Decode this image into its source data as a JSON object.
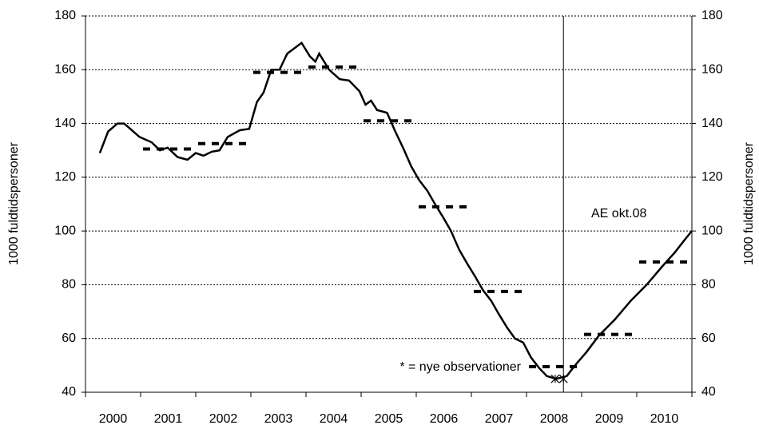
{
  "chart_data": {
    "type": "line",
    "y_label": "1000 fuldtidspersoner",
    "y2_label": "1000 fuldtidspersoner",
    "categories": [
      "2000",
      "2001",
      "2002",
      "2003",
      "2004",
      "2005",
      "2006",
      "2007",
      "2008",
      "2009",
      "2010"
    ],
    "xlim": [
      2000,
      2011
    ],
    "ylim": [
      40,
      180
    ],
    "yticks": [
      40,
      60,
      80,
      100,
      120,
      140,
      160,
      180
    ],
    "y2lim": [
      40,
      180
    ],
    "y2ticks": [
      40,
      60,
      80,
      100,
      120,
      140,
      160,
      180
    ],
    "grid": true,
    "series": [
      {
        "color": "#000000",
        "style": "solid",
        "x": [
          2000.26,
          2000.41,
          2000.58,
          2000.7,
          2000.84,
          2000.98,
          2001.2,
          2001.35,
          2001.49,
          2001.67,
          2001.85,
          2002.0,
          2002.14,
          2002.29,
          2002.43,
          2002.58,
          2002.8,
          2002.97,
          2003.11,
          2003.23,
          2003.37,
          2003.52,
          2003.66,
          2003.92,
          2004.07,
          2004.17,
          2004.24,
          2004.42,
          2004.61,
          2004.78,
          2004.97,
          2005.08,
          2005.18,
          2005.29,
          2005.47,
          2005.62,
          2005.76,
          2005.91,
          2006.05,
          2006.2,
          2006.34,
          2006.49,
          2006.63,
          2006.78,
          2006.92,
          2007.07,
          2007.21,
          2007.36,
          2007.5,
          2007.65,
          2007.79,
          2007.94,
          2008.08,
          2008.23,
          2008.37,
          2008.54,
          2008.73,
          2008.88,
          2009.09,
          2009.31,
          2009.6,
          2009.89,
          2010.18,
          2010.47,
          2010.69,
          2010.88,
          2011.0
        ],
        "values": [
          129,
          137,
          140,
          140,
          137.5,
          135,
          133,
          130,
          131,
          127.5,
          126.5,
          129,
          128,
          129.5,
          130,
          135,
          137.5,
          138,
          148,
          151.5,
          160,
          160,
          166,
          170,
          165,
          163,
          166,
          160,
          156.5,
          156,
          152,
          147,
          148.5,
          145,
          144,
          137,
          131,
          124,
          119,
          115,
          110,
          105,
          100,
          93,
          88,
          83,
          78,
          74,
          69,
          64,
          60,
          58.5,
          53,
          49,
          46,
          45,
          46,
          50,
          55,
          61,
          67,
          74,
          80,
          87,
          92,
          97,
          100
        ]
      },
      {
        "color": "#000000",
        "style": "dashed",
        "x": [
          2001,
          2002,
          2003,
          2004,
          2005,
          2006,
          2007,
          2008,
          2009,
          2010
        ],
        "values": [
          130.5,
          132.5,
          159,
          161,
          141,
          109,
          77.5,
          49.5,
          61.5,
          88.5
        ]
      },
      {
        "color": "#000000",
        "style": "star",
        "x": [
          2008.52,
          2008.67
        ],
        "values": [
          45,
          45
        ]
      }
    ],
    "vline": 2008.67,
    "annotations": [
      "AE okt.08",
      "* = nye observationer"
    ]
  }
}
